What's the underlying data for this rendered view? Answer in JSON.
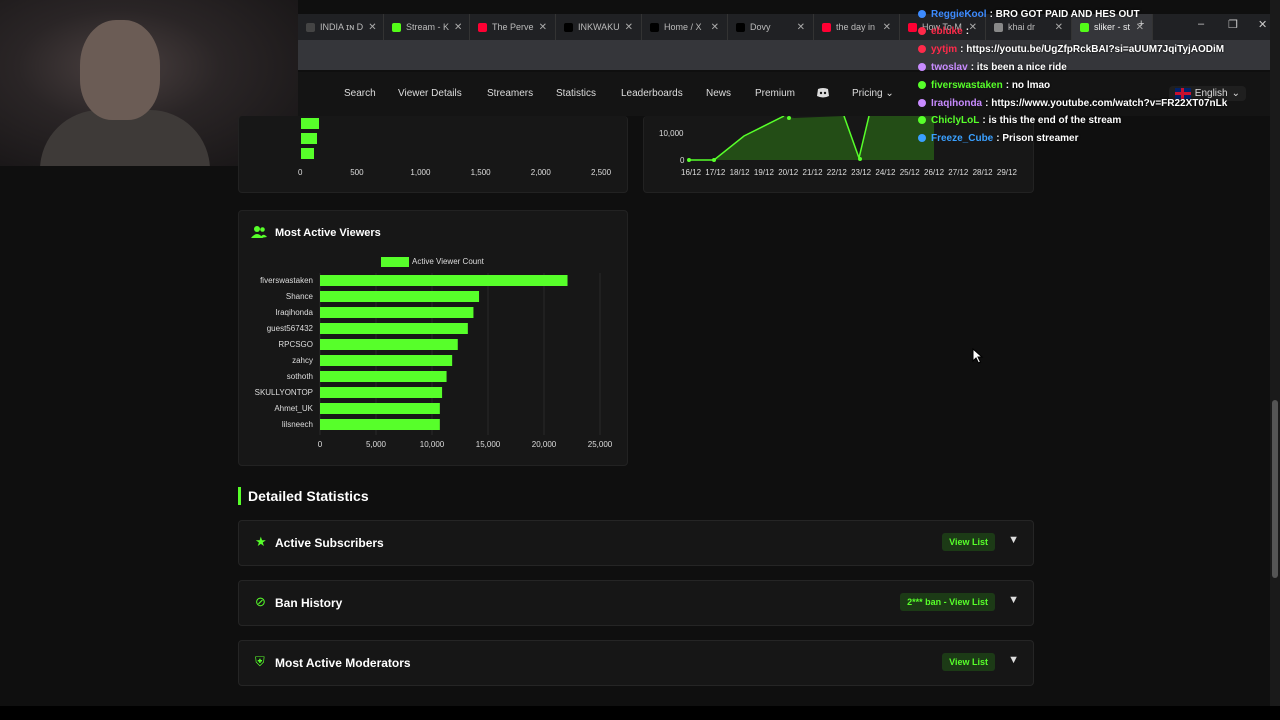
{
  "browser": {
    "tabs": [
      {
        "label": "INDIA ɪɴ D",
        "icon_color": "#444"
      },
      {
        "label": "Stream - K",
        "icon_color": "#53fc18"
      },
      {
        "label": "The Perve",
        "icon_color": "#ff0033"
      },
      {
        "label": "INKWAKU",
        "icon_color": "#000"
      },
      {
        "label": "Home / X",
        "icon_color": "#000"
      },
      {
        "label": "Dovy",
        "icon_color": "#000"
      },
      {
        "label": "the day in",
        "icon_color": "#ff0033"
      },
      {
        "label": "How To M",
        "icon_color": "#ff0033"
      },
      {
        "label": "khai dr",
        "icon_color": "#888"
      },
      {
        "label": "sliker - st",
        "icon_color": "#53fc18"
      }
    ],
    "new_tab": "+",
    "close_glyph": "✕",
    "new_tab_ctrl": "+",
    "minimize": "–",
    "restore": "❐",
    "close": "✕"
  },
  "nav": {
    "items": [
      "Search",
      "Viewer Details",
      "Streamers",
      "Statistics",
      "Leaderboards",
      "News",
      "Premium",
      "Pricing"
    ],
    "pricing_caret": "⌄",
    "language": "English",
    "language_caret": "⌄"
  },
  "top_left_chart": {
    "x_ticks": [
      "0",
      "500",
      "1,000",
      "1,500",
      "2,000",
      "2,500"
    ],
    "partial_bars": [
      150,
      130,
      105
    ]
  },
  "top_right_chart": {
    "y_ticks": [
      "10,000",
      "0"
    ],
    "x_ticks": [
      "16/12",
      "17/12",
      "18/12",
      "19/12",
      "20/12",
      "21/12",
      "22/12",
      "23/12",
      "24/12",
      "25/12",
      "26/12",
      "27/12",
      "28/12",
      "29/12"
    ]
  },
  "most_active": {
    "title": "Most Active Viewers",
    "legend": "Active Viewer Count"
  },
  "chart_data": {
    "type": "bar",
    "orientation": "horizontal",
    "title": "Most Active Viewers",
    "categories": [
      "fiverswastaken",
      "Shance",
      "Iraqihonda",
      "guest567432",
      "RPCSGO",
      "zahcy",
      "sothoth",
      "SKULLYONTOP",
      "Ahmet_UK",
      "lilsneech"
    ],
    "series": [
      {
        "name": "Active Viewer Count",
        "values": [
          22100,
          14200,
          13700,
          13200,
          12300,
          11800,
          11300,
          10900,
          10700,
          10700
        ]
      }
    ],
    "x_ticks": [
      "0",
      "5,000",
      "10,000",
      "15,000",
      "20,000",
      "25,000"
    ],
    "xlim": [
      0,
      25000
    ],
    "legend_position": "top",
    "grid": true
  },
  "detailed": {
    "title": "Detailed Statistics",
    "sections": [
      {
        "title": "Active Subscribers",
        "icon": "★",
        "button": "View List"
      },
      {
        "title": "Ban History",
        "icon": "⊘",
        "button": "2*** ban - View List"
      },
      {
        "title": "Most Active Moderators",
        "icon": "⛨",
        "button": "View List"
      }
    ]
  },
  "chat": [
    {
      "name": "ReggieKool",
      "color": "#3d8bff",
      "message": ": BRO GOT PAID AND HES OUT"
    },
    {
      "name": "ebluke",
      "color": "#ff2a4a",
      "message": ":"
    },
    {
      "name": "yytjm",
      "color": "#ff2a4a",
      "message": ": https://youtu.be/UgZfpRckBAI?si=aUUM7JqiTyjAODiM"
    },
    {
      "name": "twoslav",
      "color": "#c88bff",
      "message": ": its been a nice ride"
    },
    {
      "name": "fiverswastaken",
      "color": "#57ff2a",
      "message": ": no lmao"
    },
    {
      "name": "Iraqihonda",
      "color": "#c88bff",
      "message": ": https://www.youtube.com/watch?v=FR22XT07nLk"
    },
    {
      "name": "ChiclyLoL",
      "color": "#57ff2a",
      "message": ": is this the end of the stream"
    },
    {
      "name": "Freeze_Cube",
      "color": "#3aa0ff",
      "message": ": Prison streamer"
    }
  ]
}
